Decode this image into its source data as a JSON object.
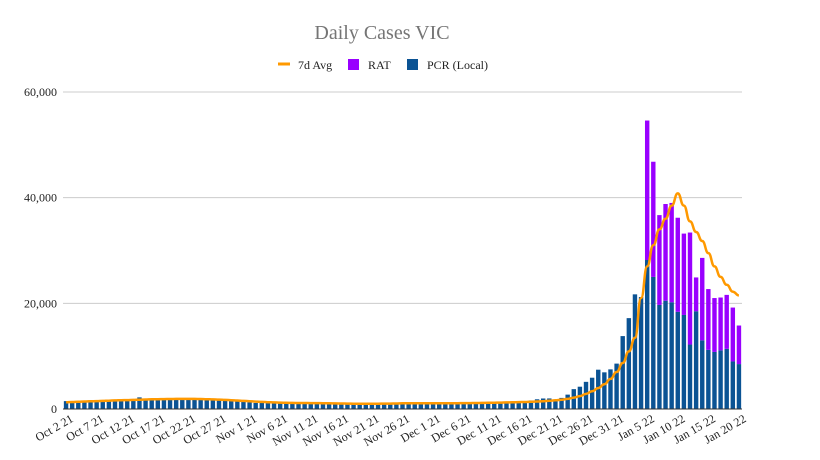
{
  "chart_data": {
    "type": "bar",
    "title": "Daily Cases VIC",
    "xlabel": "",
    "ylabel": "",
    "ylim": [
      0,
      60000
    ],
    "yticks": [
      {
        "value": 0,
        "label": "0"
      },
      {
        "value": 20000,
        "label": "20,000"
      },
      {
        "value": 40000,
        "label": "40,000"
      },
      {
        "value": 60000,
        "label": "60,000"
      }
    ],
    "x_tick_labels": [
      "Oct 2 21",
      "Oct 7 21",
      "Oct 12 21",
      "Oct 17 21",
      "Oct 22 21",
      "Oct 27 21",
      "Nov 1 21",
      "Nov 6 21",
      "Nov 11 21",
      "Nov 16 21",
      "Nov 21 21",
      "Nov 26 21",
      "Dec 1 21",
      "Dec 6 21",
      "Dec 11 21",
      "Dec 16 21",
      "Dec 21 21",
      "Dec 26 21",
      "Dec 31 21",
      "Jan 5 22",
      "Jan 10 22",
      "Jan 15 22",
      "Jan 20 22"
    ],
    "grid": true,
    "legend_position": "top",
    "stacked": true,
    "colors": {
      "avg": "#ff9900",
      "rat": "#9900ff",
      "pcr": "#0b5394"
    },
    "series": [
      {
        "name": "PCR (Local)",
        "kind": "bar",
        "values": [
          1490,
          1220,
          1380,
          1470,
          1640,
          1480,
          1510,
          1700,
          1750,
          1840,
          1770,
          1780,
          2200,
          1860,
          1920,
          1880,
          1920,
          1890,
          1920,
          1930,
          1940,
          1860,
          1900,
          1750,
          1610,
          1640,
          1650,
          1530,
          1480,
          1370,
          1270,
          1140,
          1170,
          1240,
          1160,
          1030,
          1090,
          1180,
          1180,
          1090,
          1160,
          1020,
          1100,
          1000,
          1000,
          960,
          950,
          940,
          920,
          1000,
          1060,
          1030,
          1050,
          1100,
          1100,
          1120,
          1100,
          1160,
          1100,
          1120,
          1040,
          1140,
          1070,
          1140,
          1100,
          1110,
          1180,
          1270,
          1150,
          1150,
          1290,
          1290,
          1320,
          1450,
          1500,
          1500,
          1620,
          1840,
          1990,
          2000,
          1510,
          2100,
          2720,
          3760,
          4220,
          5140,
          5920,
          7440,
          6940,
          7500,
          8590,
          13800,
          17200,
          21700,
          21200,
          28200,
          25000,
          19700,
          20500,
          20200,
          18400,
          17800,
          12200,
          18500,
          13000,
          11200,
          10800,
          11100,
          11400,
          9000,
          8500
        ],
        "raw_values": [
          1490,
          1220,
          1380,
          1470,
          1640,
          1480,
          1510,
          1700,
          1750,
          1840,
          1770,
          1780,
          2200,
          1860,
          1920,
          1880,
          1920,
          1890,
          1920,
          1930,
          1940,
          1860,
          1900,
          1750,
          1610,
          1640,
          1650,
          1530,
          1480,
          1370,
          1270,
          1140,
          1170,
          1240,
          1160,
          1030,
          1090,
          1180,
          1180,
          1090,
          1160,
          1020,
          1100,
          1000,
          1000,
          960,
          950,
          940,
          920,
          1000,
          1060,
          1030,
          1050,
          1100,
          1100,
          1120,
          1100,
          1160,
          1100,
          1120,
          1040,
          1140,
          1070,
          1140,
          1100,
          1110,
          1180,
          1270,
          1150,
          1150,
          1290,
          1290,
          1320,
          1450,
          1500,
          1500,
          1620,
          1840,
          1990,
          2000,
          1510,
          2100,
          2720,
          3760,
          4220,
          5140,
          5920,
          7440,
          6940,
          7500,
          8590,
          13800,
          17200,
          21700,
          21200,
          28200,
          25000,
          19700,
          20500,
          20200,
          18400,
          17800,
          12200,
          18500,
          13000,
          11200,
          10800,
          11100,
          11400,
          9000,
          8500
        ]
      },
      {
        "name": "RAT",
        "kind": "bar",
        "values": [
          0,
          0,
          0,
          0,
          0,
          0,
          0,
          0,
          0,
          0,
          0,
          0,
          0,
          0,
          0,
          0,
          0,
          0,
          0,
          0,
          0,
          0,
          0,
          0,
          0,
          0,
          0,
          0,
          0,
          0,
          0,
          0,
          0,
          0,
          0,
          0,
          0,
          0,
          0,
          0,
          0,
          0,
          0,
          0,
          0,
          0,
          0,
          0,
          0,
          0,
          0,
          0,
          0,
          0,
          0,
          0,
          0,
          0,
          0,
          0,
          0,
          0,
          0,
          0,
          0,
          0,
          0,
          0,
          0,
          0,
          0,
          0,
          0,
          0,
          0,
          0,
          0,
          0,
          0,
          0,
          0,
          0,
          0,
          0,
          0,
          0,
          0,
          0,
          0,
          0,
          0,
          0,
          0,
          0,
          0,
          26400,
          21800,
          17000,
          18300,
          18800,
          17800,
          15400,
          21200,
          6400,
          15600,
          11500,
          10200,
          10000,
          10200,
          10200,
          7300
        ]
      },
      {
        "name": "7d Avg",
        "kind": "line",
        "values": [
          1280,
          1330,
          1380,
          1420,
          1460,
          1500,
          1540,
          1580,
          1620,
          1660,
          1690,
          1720,
          1760,
          1800,
          1830,
          1860,
          1880,
          1900,
          1910,
          1920,
          1920,
          1910,
          1890,
          1860,
          1820,
          1770,
          1720,
          1660,
          1600,
          1540,
          1470,
          1400,
          1340,
          1290,
          1250,
          1210,
          1180,
          1150,
          1140,
          1130,
          1120,
          1110,
          1100,
          1080,
          1060,
          1040,
          1020,
          1000,
          990,
          990,
          1000,
          1010,
          1020,
          1030,
          1050,
          1070,
          1090,
          1100,
          1100,
          1100,
          1100,
          1100,
          1100,
          1100,
          1100,
          1110,
          1120,
          1140,
          1160,
          1180,
          1200,
          1220,
          1240,
          1270,
          1300,
          1330,
          1370,
          1420,
          1480,
          1550,
          1640,
          1760,
          1920,
          2150,
          2450,
          2850,
          3350,
          3950,
          4700,
          5700,
          7000,
          8700,
          10900,
          13500,
          21000,
          27000,
          31000,
          34000,
          36000,
          38500,
          40800,
          38500,
          35500,
          33500,
          31800,
          29500,
          27000,
          25000,
          23500,
          22200,
          21500
        ]
      }
    ]
  }
}
